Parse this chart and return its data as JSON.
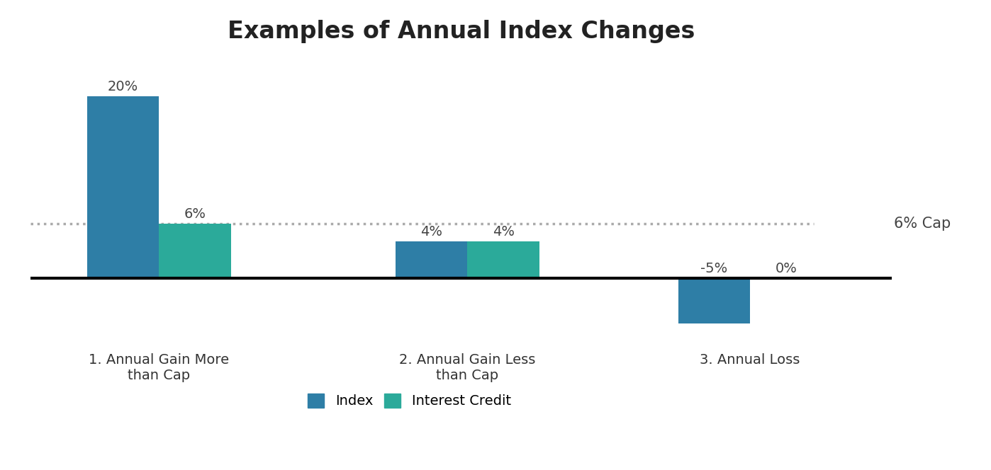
{
  "title": "Examples of Annual Index Changes",
  "title_fontsize": 24,
  "title_fontweight": "bold",
  "categories": [
    "1. Annual Gain More\nthan Cap",
    "2. Annual Gain Less\nthan Cap",
    "3. Annual Loss"
  ],
  "index_values": [
    20,
    4,
    -5
  ],
  "credit_values": [
    6,
    4,
    0
  ],
  "index_color": "#2E7EA6",
  "credit_color": "#2BAA9A",
  "cap_value": 6,
  "cap_label": "6% Cap",
  "cap_line_color": "#AAAAAA",
  "ylim": [
    -7,
    24
  ],
  "bar_width": 0.28,
  "background_color": "#FFFFFF",
  "legend_labels": [
    "Index",
    "Interest Credit"
  ],
  "value_fontsize": 14,
  "cap_fontsize": 15,
  "legend_fontsize": 14,
  "axis_label_fontsize": 14,
  "x_positions": [
    0.5,
    1.7,
    2.8
  ]
}
